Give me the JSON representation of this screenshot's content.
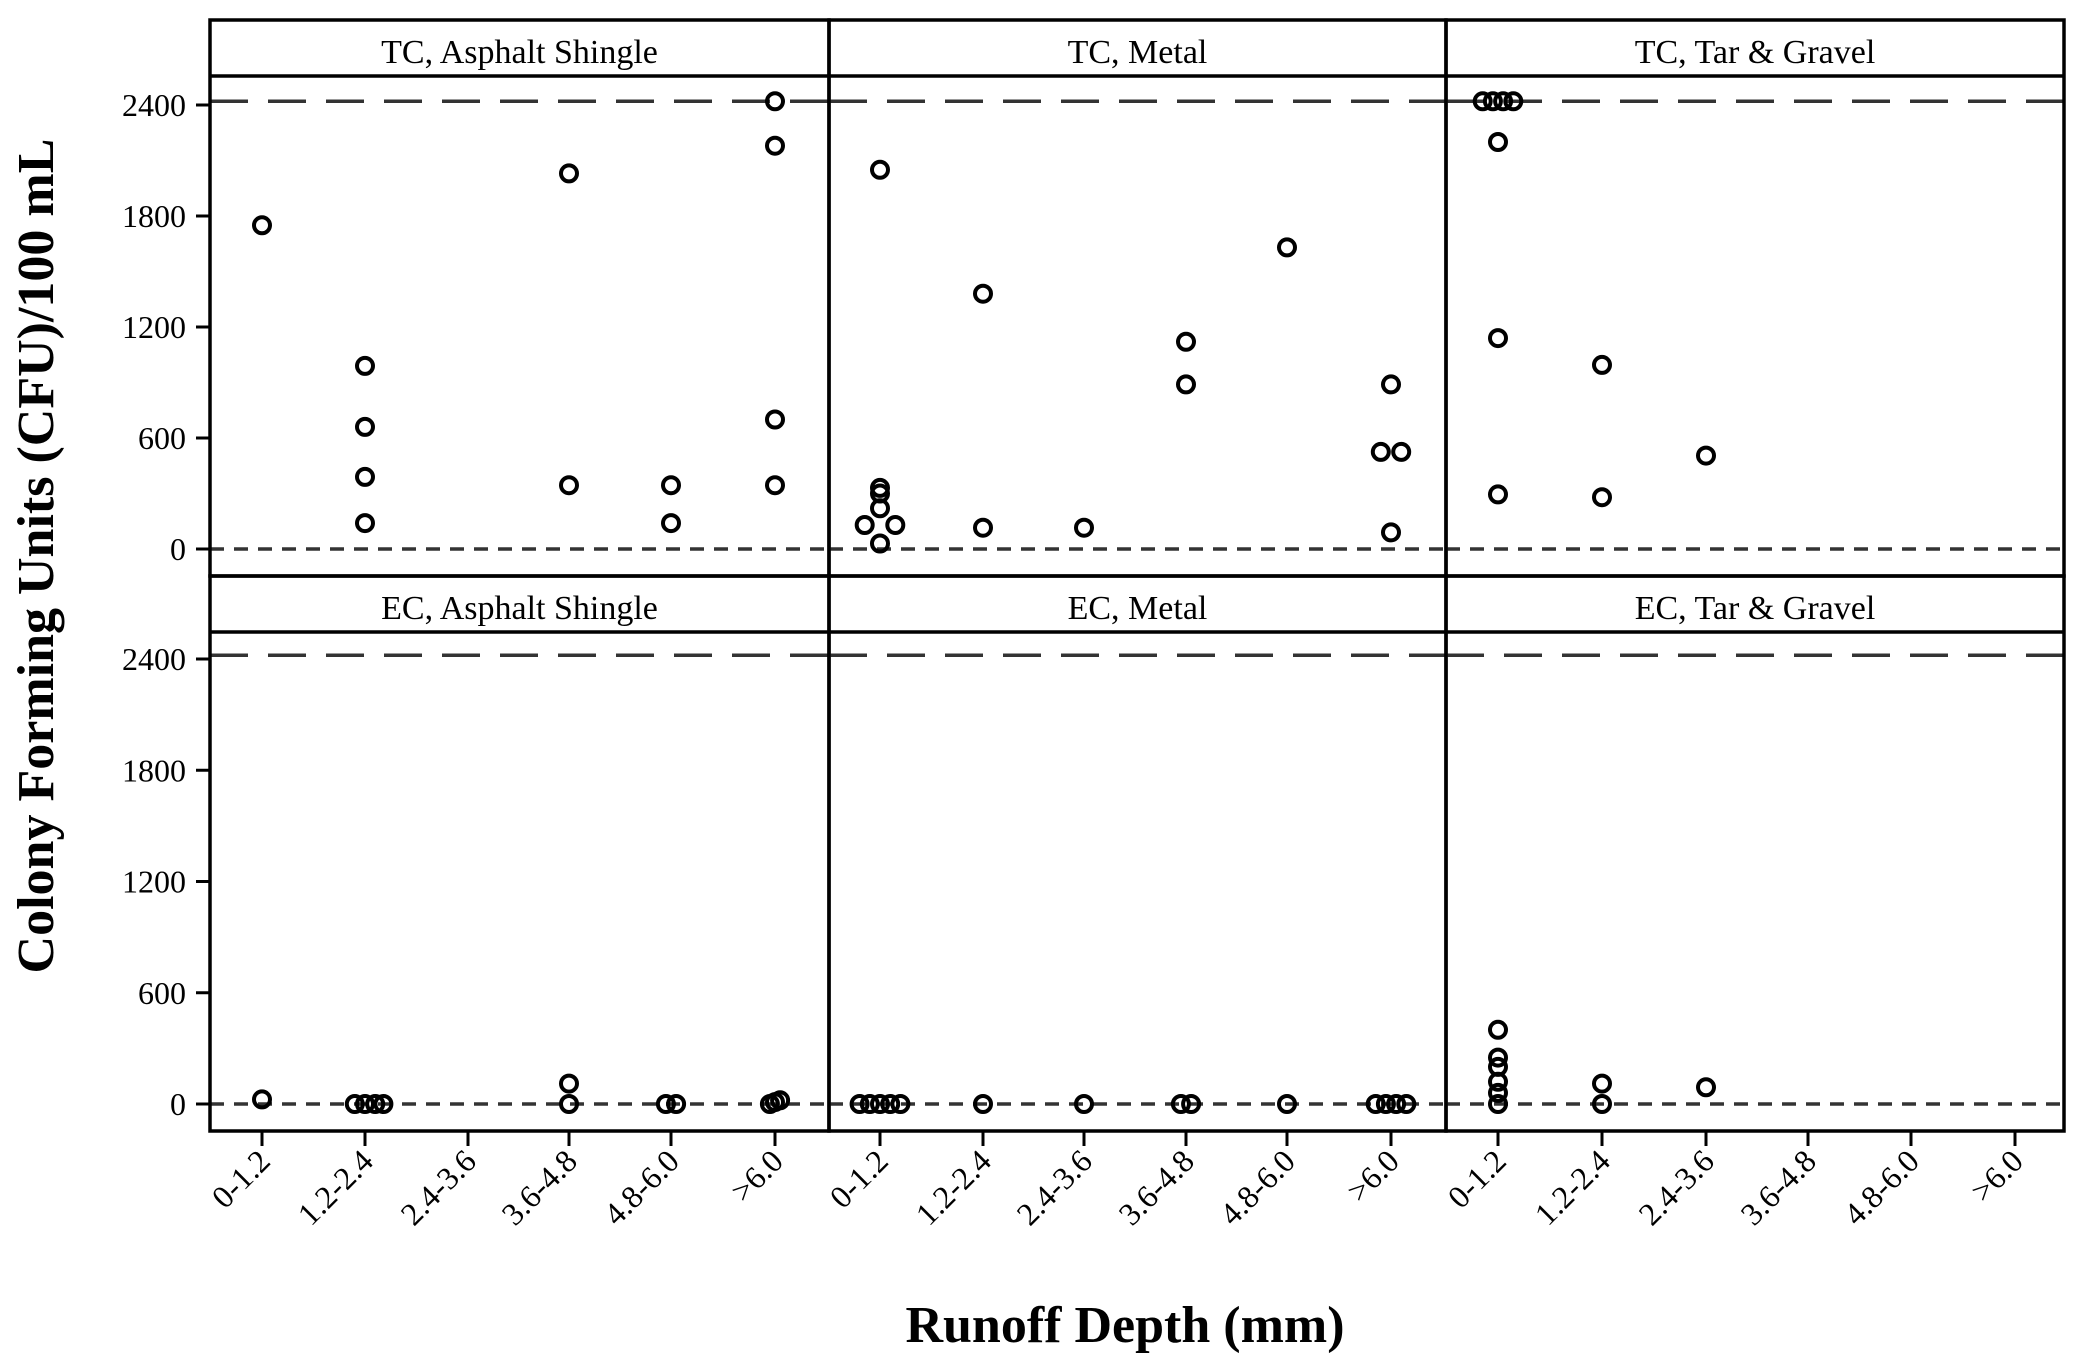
{
  "chart_data": {
    "type": "scatter",
    "xlabel": "Runoff Depth (mm)",
    "ylabel": "Colony Forming Units (CFU)/100 mL",
    "categories": [
      "0-1.2",
      "1.2-2.4",
      "2.4-3.6",
      "3.6-4.8",
      "4.8-6.0",
      ">6.0"
    ],
    "y_ticks": [
      0,
      600,
      1200,
      1800,
      2400
    ],
    "ylim": [
      -140,
      2650
    ],
    "reference_lines": {
      "upper": 2420,
      "lower": 0
    },
    "panels": [
      {
        "title": "TC, Asphalt Shingle",
        "points": [
          {
            "category": "0-1.2",
            "offset": 0,
            "value": 1750
          },
          {
            "category": "1.2-2.4",
            "offset": 0,
            "value": 990
          },
          {
            "category": "1.2-2.4",
            "offset": 0,
            "value": 660
          },
          {
            "category": "1.2-2.4",
            "offset": 0,
            "value": 390
          },
          {
            "category": "1.2-2.4",
            "offset": 0,
            "value": 140
          },
          {
            "category": "3.6-4.8",
            "offset": 0,
            "value": 2030
          },
          {
            "category": "3.6-4.8",
            "offset": 0,
            "value": 345
          },
          {
            "category": "4.8-6.0",
            "offset": 0,
            "value": 345
          },
          {
            "category": "4.8-6.0",
            "offset": 0,
            "value": 140
          },
          {
            "category": ">6.0",
            "offset": 0,
            "value": 2420
          },
          {
            "category": ">6.0",
            "offset": 0,
            "value": 2180
          },
          {
            "category": ">6.0",
            "offset": 0,
            "value": 700
          },
          {
            "category": ">6.0",
            "offset": 0,
            "value": 345
          }
        ]
      },
      {
        "title": "TC, Metal",
        "points": [
          {
            "category": "0-1.2",
            "offset": 0,
            "value": 2050
          },
          {
            "category": "0-1.2",
            "offset": 0,
            "value": 330
          },
          {
            "category": "0-1.2",
            "offset": 0,
            "value": 300
          },
          {
            "category": "0-1.2",
            "offset": 0,
            "value": 220
          },
          {
            "category": "0-1.2",
            "offset": -0.15,
            "value": 130
          },
          {
            "category": "0-1.2",
            "offset": 0.15,
            "value": 130
          },
          {
            "category": "0-1.2",
            "offset": 0,
            "value": 30
          },
          {
            "category": "1.2-2.4",
            "offset": 0,
            "value": 1380
          },
          {
            "category": "1.2-2.4",
            "offset": 0,
            "value": 115
          },
          {
            "category": "2.4-3.6",
            "offset": 0,
            "value": 115
          },
          {
            "category": "3.6-4.8",
            "offset": 0,
            "value": 1120
          },
          {
            "category": "3.6-4.8",
            "offset": 0,
            "value": 890
          },
          {
            "category": "4.8-6.0",
            "offset": 0,
            "value": 1630
          },
          {
            "category": ">6.0",
            "offset": 0,
            "value": 890
          },
          {
            "category": ">6.0",
            "offset": -0.1,
            "value": 525
          },
          {
            "category": ">6.0",
            "offset": 0.1,
            "value": 525
          },
          {
            "category": ">6.0",
            "offset": 0,
            "value": 90
          }
        ]
      },
      {
        "title": "TC, Tar & Gravel",
        "points": [
          {
            "category": "0-1.2",
            "offset": -0.15,
            "value": 2420
          },
          {
            "category": "0-1.2",
            "offset": -0.05,
            "value": 2420
          },
          {
            "category": "0-1.2",
            "offset": 0.05,
            "value": 2420
          },
          {
            "category": "0-1.2",
            "offset": 0.15,
            "value": 2420
          },
          {
            "category": "0-1.2",
            "offset": 0,
            "value": 2200
          },
          {
            "category": "0-1.2",
            "offset": 0,
            "value": 1140
          },
          {
            "category": "0-1.2",
            "offset": 0,
            "value": 295
          },
          {
            "category": "1.2-2.4",
            "offset": 0,
            "value": 995
          },
          {
            "category": "1.2-2.4",
            "offset": 0,
            "value": 280
          },
          {
            "category": "2.4-3.6",
            "offset": 0,
            "value": 505
          }
        ]
      },
      {
        "title": "EC, Asphalt Shingle",
        "points": [
          {
            "category": "0-1.2",
            "offset": 0,
            "value": 25
          },
          {
            "category": "1.2-2.4",
            "offset": -0.1,
            "value": 0
          },
          {
            "category": "1.2-2.4",
            "offset": 0,
            "value": 0
          },
          {
            "category": "1.2-2.4",
            "offset": 0.1,
            "value": 0
          },
          {
            "category": "1.2-2.4",
            "offset": 0.18,
            "value": 0
          },
          {
            "category": "3.6-4.8",
            "offset": 0,
            "value": 110
          },
          {
            "category": "3.6-4.8",
            "offset": 0,
            "value": 0
          },
          {
            "category": "4.8-6.0",
            "offset": -0.05,
            "value": 0
          },
          {
            "category": "4.8-6.0",
            "offset": 0.05,
            "value": 0
          },
          {
            "category": ">6.0",
            "offset": -0.05,
            "value": 0
          },
          {
            "category": ">6.0",
            "offset": 0,
            "value": 10
          },
          {
            "category": ">6.0",
            "offset": 0.05,
            "value": 20
          }
        ]
      },
      {
        "title": "EC, Metal",
        "points": [
          {
            "category": "0-1.2",
            "offset": -0.2,
            "value": 0
          },
          {
            "category": "0-1.2",
            "offset": -0.1,
            "value": 0
          },
          {
            "category": "0-1.2",
            "offset": 0,
            "value": 0
          },
          {
            "category": "0-1.2",
            "offset": 0.1,
            "value": 0
          },
          {
            "category": "0-1.2",
            "offset": 0.2,
            "value": 0
          },
          {
            "category": "1.2-2.4",
            "offset": 0,
            "value": 0
          },
          {
            "category": "2.4-3.6",
            "offset": 0,
            "value": 0
          },
          {
            "category": "3.6-4.8",
            "offset": -0.05,
            "value": 0
          },
          {
            "category": "3.6-4.8",
            "offset": 0.05,
            "value": 0
          },
          {
            "category": "4.8-6.0",
            "offset": 0,
            "value": 0
          },
          {
            "category": ">6.0",
            "offset": -0.15,
            "value": 0
          },
          {
            "category": ">6.0",
            "offset": -0.05,
            "value": 0
          },
          {
            "category": ">6.0",
            "offset": 0.05,
            "value": 0
          },
          {
            "category": ">6.0",
            "offset": 0.15,
            "value": 0
          }
        ]
      },
      {
        "title": "EC, Tar & Gravel",
        "points": [
          {
            "category": "0-1.2",
            "offset": 0,
            "value": 400
          },
          {
            "category": "0-1.2",
            "offset": 0,
            "value": 250
          },
          {
            "category": "0-1.2",
            "offset": 0,
            "value": 200
          },
          {
            "category": "0-1.2",
            "offset": 0,
            "value": 120
          },
          {
            "category": "0-1.2",
            "offset": 0,
            "value": 60
          },
          {
            "category": "0-1.2",
            "offset": 0,
            "value": 0
          },
          {
            "category": "1.2-2.4",
            "offset": 0,
            "value": 110
          },
          {
            "category": "1.2-2.4",
            "offset": 0,
            "value": 0
          },
          {
            "category": "2.4-3.6",
            "offset": 0,
            "value": 90
          }
        ]
      }
    ]
  }
}
